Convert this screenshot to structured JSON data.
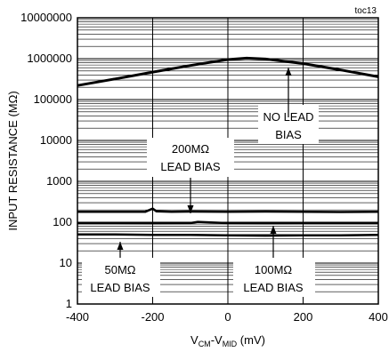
{
  "chart_data": {
    "type": "line",
    "corner_label": "toc13",
    "xlabel": "VCM-VMID (mV)",
    "xlabel_parts": {
      "main": "V",
      "sub1": "CM",
      "dash": "-V",
      "sub2": "MID",
      "unit": " (mV)"
    },
    "ylabel": "INPUT RESISTANCE (MΩ)",
    "xlim": [
      -400,
      400
    ],
    "ylim": [
      1,
      10000000
    ],
    "yscale": "log",
    "grid": true,
    "x_ticks": [
      -400,
      -200,
      0,
      200,
      400
    ],
    "x_tick_labels": [
      "-400",
      "-200",
      "0",
      "200",
      "400"
    ],
    "y_ticks": [
      1,
      10,
      100,
      1000,
      10000,
      100000,
      1000000,
      10000000
    ],
    "y_tick_labels": [
      "1",
      "10",
      "100",
      "1000",
      "10000",
      "100000",
      "1000000",
      "10000000"
    ],
    "series": [
      {
        "x": [
          -400,
          -300,
          -200,
          -100,
          0,
          50,
          100,
          200,
          300,
          400
        ],
        "y": [
          220000,
          320000,
          470000,
          680000,
          950000,
          1030000,
          980000,
          760000,
          530000,
          360000
        ]
      },
      {
        "x": [
          -400,
          -300,
          -220,
          -200,
          -190,
          -150,
          -100,
          0,
          100,
          200,
          300,
          400
        ],
        "y": [
          180,
          180,
          180,
          215,
          185,
          180,
          182,
          180,
          182,
          180,
          178,
          180
        ]
      },
      {
        "x": [
          -400,
          -300,
          -200,
          -100,
          -80,
          0,
          100,
          200,
          300,
          400
        ],
        "y": [
          95,
          95,
          94,
          95,
          102,
          95,
          94,
          95,
          95,
          95
        ]
      },
      {
        "x": [
          -400,
          -300,
          -200,
          -100,
          0,
          100,
          200,
          300,
          400
        ],
        "y": [
          50,
          50,
          49,
          49,
          48,
          47,
          48,
          48,
          49
        ]
      }
    ],
    "annotations": [
      {
        "lines": [
          "NO LEAD",
          "BIAS"
        ]
      },
      {
        "lines": [
          "200MΩ",
          "LEAD BIAS"
        ]
      },
      {
        "lines": [
          "50MΩ",
          "LEAD BIAS"
        ]
      },
      {
        "lines": [
          "100MΩ",
          "LEAD BIAS"
        ]
      }
    ],
    "colors": {
      "line": "#000000",
      "grid": "#000000",
      "background": "#ffffff"
    }
  }
}
